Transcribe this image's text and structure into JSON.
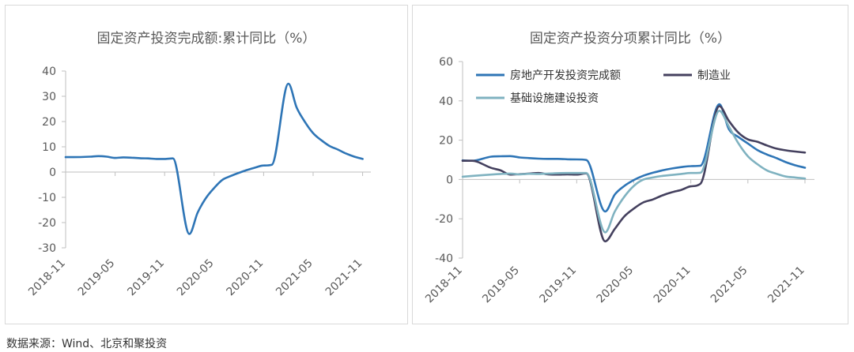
{
  "source_text": "数据来源：Wind、北京和聚投资",
  "chart_data": [
    {
      "type": "line",
      "title": "固定资产投资完成额:累计同比（%）",
      "xlabel": "",
      "ylabel": "",
      "ylim": [
        -30,
        40
      ],
      "yticks": [
        40,
        30,
        20,
        10,
        0,
        -10,
        -20,
        -30
      ],
      "xtick_labels": [
        "2018-11",
        "2019-05",
        "2019-11",
        "2020-05",
        "2020-11",
        "2021-05",
        "2021-11"
      ],
      "xlim": [
        "2018-11",
        "2021-12"
      ],
      "grid": false,
      "legend": "none",
      "series": [
        {
          "color": "#2e75b6",
          "points": [
            [
              "2018-11",
              5.9
            ],
            [
              "2018-12",
              5.9
            ],
            [
              "2019-02",
              6.1
            ],
            [
              "2019-03",
              6.3
            ],
            [
              "2019-04",
              6.1
            ],
            [
              "2019-05",
              5.6
            ],
            [
              "2019-06",
              5.8
            ],
            [
              "2019-07",
              5.7
            ],
            [
              "2019-08",
              5.5
            ],
            [
              "2019-09",
              5.4
            ],
            [
              "2019-10",
              5.2
            ],
            [
              "2019-11",
              5.2
            ],
            [
              "2019-12",
              5.4
            ],
            [
              "2020-02",
              -24.5
            ],
            [
              "2020-03",
              -16.1
            ],
            [
              "2020-04",
              -10.3
            ],
            [
              "2020-05",
              -6.3
            ],
            [
              "2020-06",
              -3.1
            ],
            [
              "2020-07",
              -1.6
            ],
            [
              "2020-08",
              -0.3
            ],
            [
              "2020-09",
              0.8
            ],
            [
              "2020-10",
              1.8
            ],
            [
              "2020-11",
              2.6
            ],
            [
              "2020-12",
              2.9
            ],
            [
              "2021-02",
              35.0
            ],
            [
              "2021-03",
              25.6
            ],
            [
              "2021-04",
              19.9
            ],
            [
              "2021-05",
              15.4
            ],
            [
              "2021-06",
              12.6
            ],
            [
              "2021-07",
              10.3
            ],
            [
              "2021-08",
              8.9
            ],
            [
              "2021-09",
              7.3
            ],
            [
              "2021-10",
              6.1
            ],
            [
              "2021-11",
              5.2
            ]
          ]
        }
      ]
    },
    {
      "type": "line",
      "title": "固定资产投资分项累计同比（%）",
      "xlabel": "",
      "ylabel": "",
      "ylim": [
        -40,
        60
      ],
      "yticks": [
        60,
        40,
        20,
        0,
        -20,
        -40
      ],
      "xtick_labels": [
        "2018-11",
        "2019-05",
        "2019-11",
        "2020-05",
        "2020-11",
        "2021-05",
        "2021-11"
      ],
      "xlim": [
        "2018-11",
        "2021-12"
      ],
      "grid": false,
      "legend": "top-left",
      "series": [
        {
          "name": "房地产开发投资完成额",
          "color": "#2e75b6",
          "points": [
            [
              "2018-11",
              9.7
            ],
            [
              "2018-12",
              9.5
            ],
            [
              "2019-02",
              11.6
            ],
            [
              "2019-03",
              11.8
            ],
            [
              "2019-04",
              11.9
            ],
            [
              "2019-05",
              11.2
            ],
            [
              "2019-06",
              10.9
            ],
            [
              "2019-07",
              10.6
            ],
            [
              "2019-08",
              10.5
            ],
            [
              "2019-09",
              10.5
            ],
            [
              "2019-10",
              10.3
            ],
            [
              "2019-11",
              10.2
            ],
            [
              "2019-12",
              9.9
            ],
            [
              "2020-02",
              -16.3
            ],
            [
              "2020-03",
              -7.7
            ],
            [
              "2020-04",
              -3.3
            ],
            [
              "2020-05",
              -0.3
            ],
            [
              "2020-06",
              1.9
            ],
            [
              "2020-07",
              3.4
            ],
            [
              "2020-08",
              4.6
            ],
            [
              "2020-09",
              5.6
            ],
            [
              "2020-10",
              6.3
            ],
            [
              "2020-11",
              6.8
            ],
            [
              "2020-12",
              7.0
            ],
            [
              "2021-02",
              38.3
            ],
            [
              "2021-03",
              25.6
            ],
            [
              "2021-04",
              21.6
            ],
            [
              "2021-05",
              18.3
            ],
            [
              "2021-06",
              15.0
            ],
            [
              "2021-07",
              12.7
            ],
            [
              "2021-08",
              10.9
            ],
            [
              "2021-09",
              8.8
            ],
            [
              "2021-10",
              7.2
            ],
            [
              "2021-11",
              6.0
            ]
          ]
        },
        {
          "name": "制造业",
          "color": "#44405e",
          "points": [
            [
              "2018-11",
              9.5
            ],
            [
              "2018-12",
              9.5
            ],
            [
              "2019-02",
              5.9
            ],
            [
              "2019-03",
              4.6
            ],
            [
              "2019-04",
              2.5
            ],
            [
              "2019-05",
              2.7
            ],
            [
              "2019-06",
              3.0
            ],
            [
              "2019-07",
              3.3
            ],
            [
              "2019-08",
              2.6
            ],
            [
              "2019-09",
              2.5
            ],
            [
              "2019-10",
              2.6
            ],
            [
              "2019-11",
              2.5
            ],
            [
              "2019-12",
              3.1
            ],
            [
              "2020-02",
              -31.5
            ],
            [
              "2020-03",
              -25.2
            ],
            [
              "2020-04",
              -18.8
            ],
            [
              "2020-05",
              -14.8
            ],
            [
              "2020-06",
              -11.7
            ],
            [
              "2020-07",
              -10.2
            ],
            [
              "2020-08",
              -8.1
            ],
            [
              "2020-09",
              -6.5
            ],
            [
              "2020-10",
              -5.3
            ],
            [
              "2020-11",
              -3.5
            ],
            [
              "2020-12",
              -2.2
            ],
            [
              "2021-02",
              37.3
            ],
            [
              "2021-03",
              29.8
            ],
            [
              "2021-04",
              23.8
            ],
            [
              "2021-05",
              20.4
            ],
            [
              "2021-06",
              19.2
            ],
            [
              "2021-07",
              17.3
            ],
            [
              "2021-08",
              15.7
            ],
            [
              "2021-09",
              14.8
            ],
            [
              "2021-10",
              14.2
            ],
            [
              "2021-11",
              13.7
            ]
          ]
        },
        {
          "name": "基础设施建设投资",
          "color": "#7fb2c0",
          "points": [
            [
              "2018-11",
              1.4
            ],
            [
              "2018-12",
              1.8
            ],
            [
              "2019-02",
              2.5
            ],
            [
              "2019-03",
              2.8
            ],
            [
              "2019-04",
              3.0
            ],
            [
              "2019-05",
              2.6
            ],
            [
              "2019-06",
              2.9
            ],
            [
              "2019-07",
              2.8
            ],
            [
              "2019-08",
              3.0
            ],
            [
              "2019-09",
              3.2
            ],
            [
              "2019-10",
              3.3
            ],
            [
              "2019-11",
              3.3
            ],
            [
              "2019-12",
              3.3
            ],
            [
              "2020-02",
              -26.9
            ],
            [
              "2020-03",
              -16.4
            ],
            [
              "2020-04",
              -8.8
            ],
            [
              "2020-05",
              -3.3
            ],
            [
              "2020-06",
              -0.1
            ],
            [
              "2020-07",
              1.0
            ],
            [
              "2020-08",
              1.8
            ],
            [
              "2020-09",
              2.3
            ],
            [
              "2020-10",
              2.8
            ],
            [
              "2020-11",
              3.3
            ],
            [
              "2020-12",
              3.4
            ],
            [
              "2021-02",
              35.0
            ],
            [
              "2021-03",
              26.9
            ],
            [
              "2021-04",
              18.4
            ],
            [
              "2021-05",
              11.8
            ],
            [
              "2021-06",
              7.8
            ],
            [
              "2021-07",
              4.6
            ],
            [
              "2021-08",
              2.9
            ],
            [
              "2021-09",
              1.5
            ],
            [
              "2021-10",
              1.0
            ],
            [
              "2021-11",
              0.5
            ]
          ]
        }
      ]
    }
  ]
}
